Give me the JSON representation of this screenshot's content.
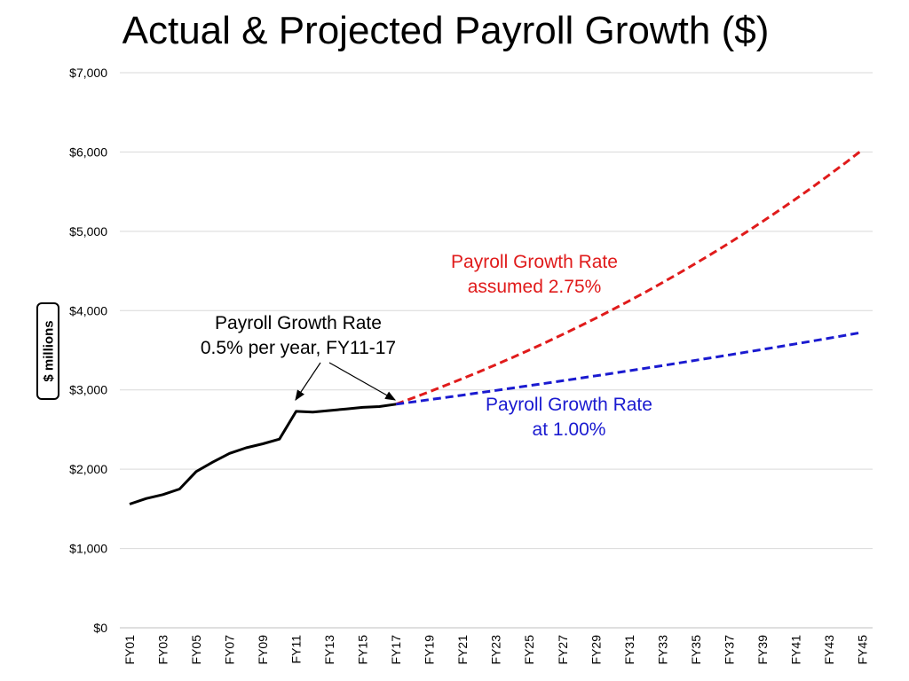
{
  "chart_data": {
    "type": "line",
    "title": "Actual & Projected Payroll Growth ($)",
    "ylabel": "$ millions",
    "xlabel": "",
    "ylim": [
      0,
      7000
    ],
    "y_ticks": [
      "$0",
      "$1,000",
      "$2,000",
      "$3,000",
      "$4,000",
      "$5,000",
      "$6,000",
      "$7,000"
    ],
    "x_ticks": [
      "FY01",
      "FY03",
      "FY05",
      "FY07",
      "FY09",
      "FY11",
      "FY13",
      "FY15",
      "FY17",
      "FY19",
      "FY21",
      "FY23",
      "FY25",
      "FY27",
      "FY29",
      "FY31",
      "FY33",
      "FY35",
      "FY37",
      "FY39",
      "FY41",
      "FY43",
      "FY45"
    ],
    "grid": true,
    "series": [
      {
        "key": "actual",
        "color": "#000000",
        "style": "solid",
        "x": [
          "FY01",
          "FY02",
          "FY03",
          "FY04",
          "FY05",
          "FY06",
          "FY07",
          "FY08",
          "FY09",
          "FY10",
          "FY11",
          "FY12",
          "FY13",
          "FY14",
          "FY15",
          "FY16",
          "FY17"
        ],
        "values": [
          1560,
          1630,
          1680,
          1750,
          1970,
          2090,
          2200,
          2270,
          2320,
          2380,
          2730,
          2720,
          2740,
          2760,
          2780,
          2790,
          2820
        ]
      },
      {
        "key": "projected_2_75",
        "color": "#e01b1b",
        "style": "dashed",
        "start_year": "FY17",
        "end_year": "FY45",
        "start_value": 2820,
        "growth_rate": 0.0275,
        "end_value": 6030
      },
      {
        "key": "projected_1_00",
        "color": "#1a1ad0",
        "style": "dashed",
        "start_year": "FY17",
        "end_year": "FY45",
        "start_value": 2820,
        "growth_rate": 0.01,
        "end_value": 3720
      }
    ],
    "annotations": {
      "red": [
        "Payroll Growth Rate",
        "assumed 2.75%"
      ],
      "blue": [
        "Payroll Growth Rate",
        "at 1.00%"
      ],
      "black": [
        "Payroll Growth Rate",
        "0.5% per year, FY11-17"
      ]
    }
  }
}
